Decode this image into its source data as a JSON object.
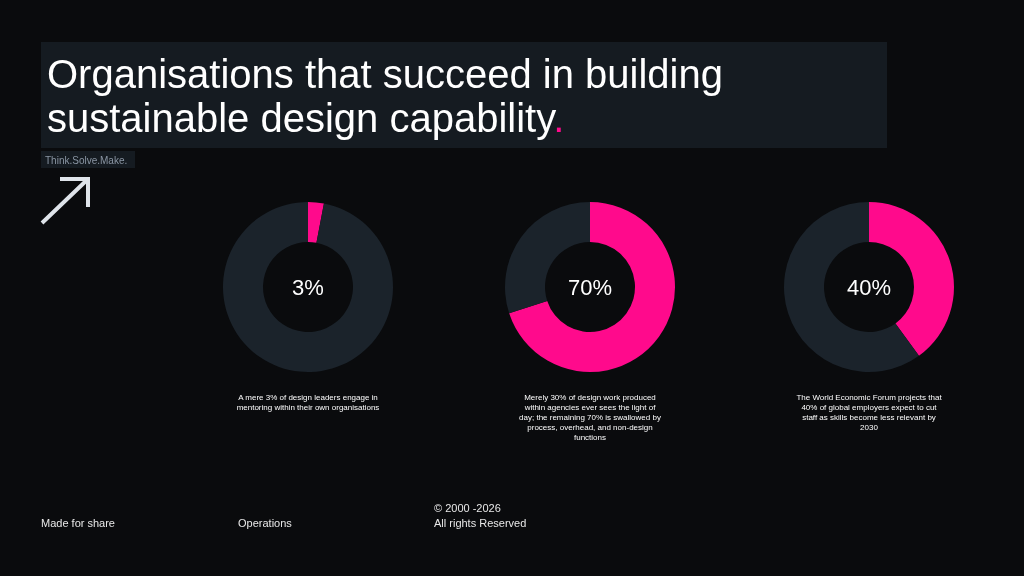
{
  "chart_data": [
    {
      "type": "donut",
      "title": "Organisations that succeed in building sustainable design capability.",
      "subtitle": "Think.Solve.Make.",
      "categories": [
        null,
        null
      ],
      "values": [
        3,
        97
      ],
      "colors": [
        "#ff0a8c",
        "#1b232b"
      ],
      "annotations": [
        "3%",
        "A mere 3% of design leaders engage in mentoring within their own organisations",
        "Made for share",
        "Operations",
        "© 2000 -2026",
        "All rights Reserved"
      ]
    },
    {
      "type": "donut",
      "categories": [
        null,
        null
      ],
      "values": [
        70,
        30
      ],
      "colors": [
        "#ff0a8c",
        "#1b232b"
      ],
      "annotations": [
        "70%",
        "Merely 30% of design work produced within agencies ever sees the light of day; the remaining 70% is swallowed by process, overhead, and non-design functions"
      ]
    },
    {
      "type": "donut",
      "categories": [
        null,
        null
      ],
      "values": [
        40,
        60
      ],
      "colors": [
        "#ff0a8c",
        "#1b232b"
      ],
      "annotations": [
        "40%",
        "The World Economic Forum projects that 40% of global employers expect to cut staff as skills become less relevant by 2030"
      ]
    }
  ]
}
